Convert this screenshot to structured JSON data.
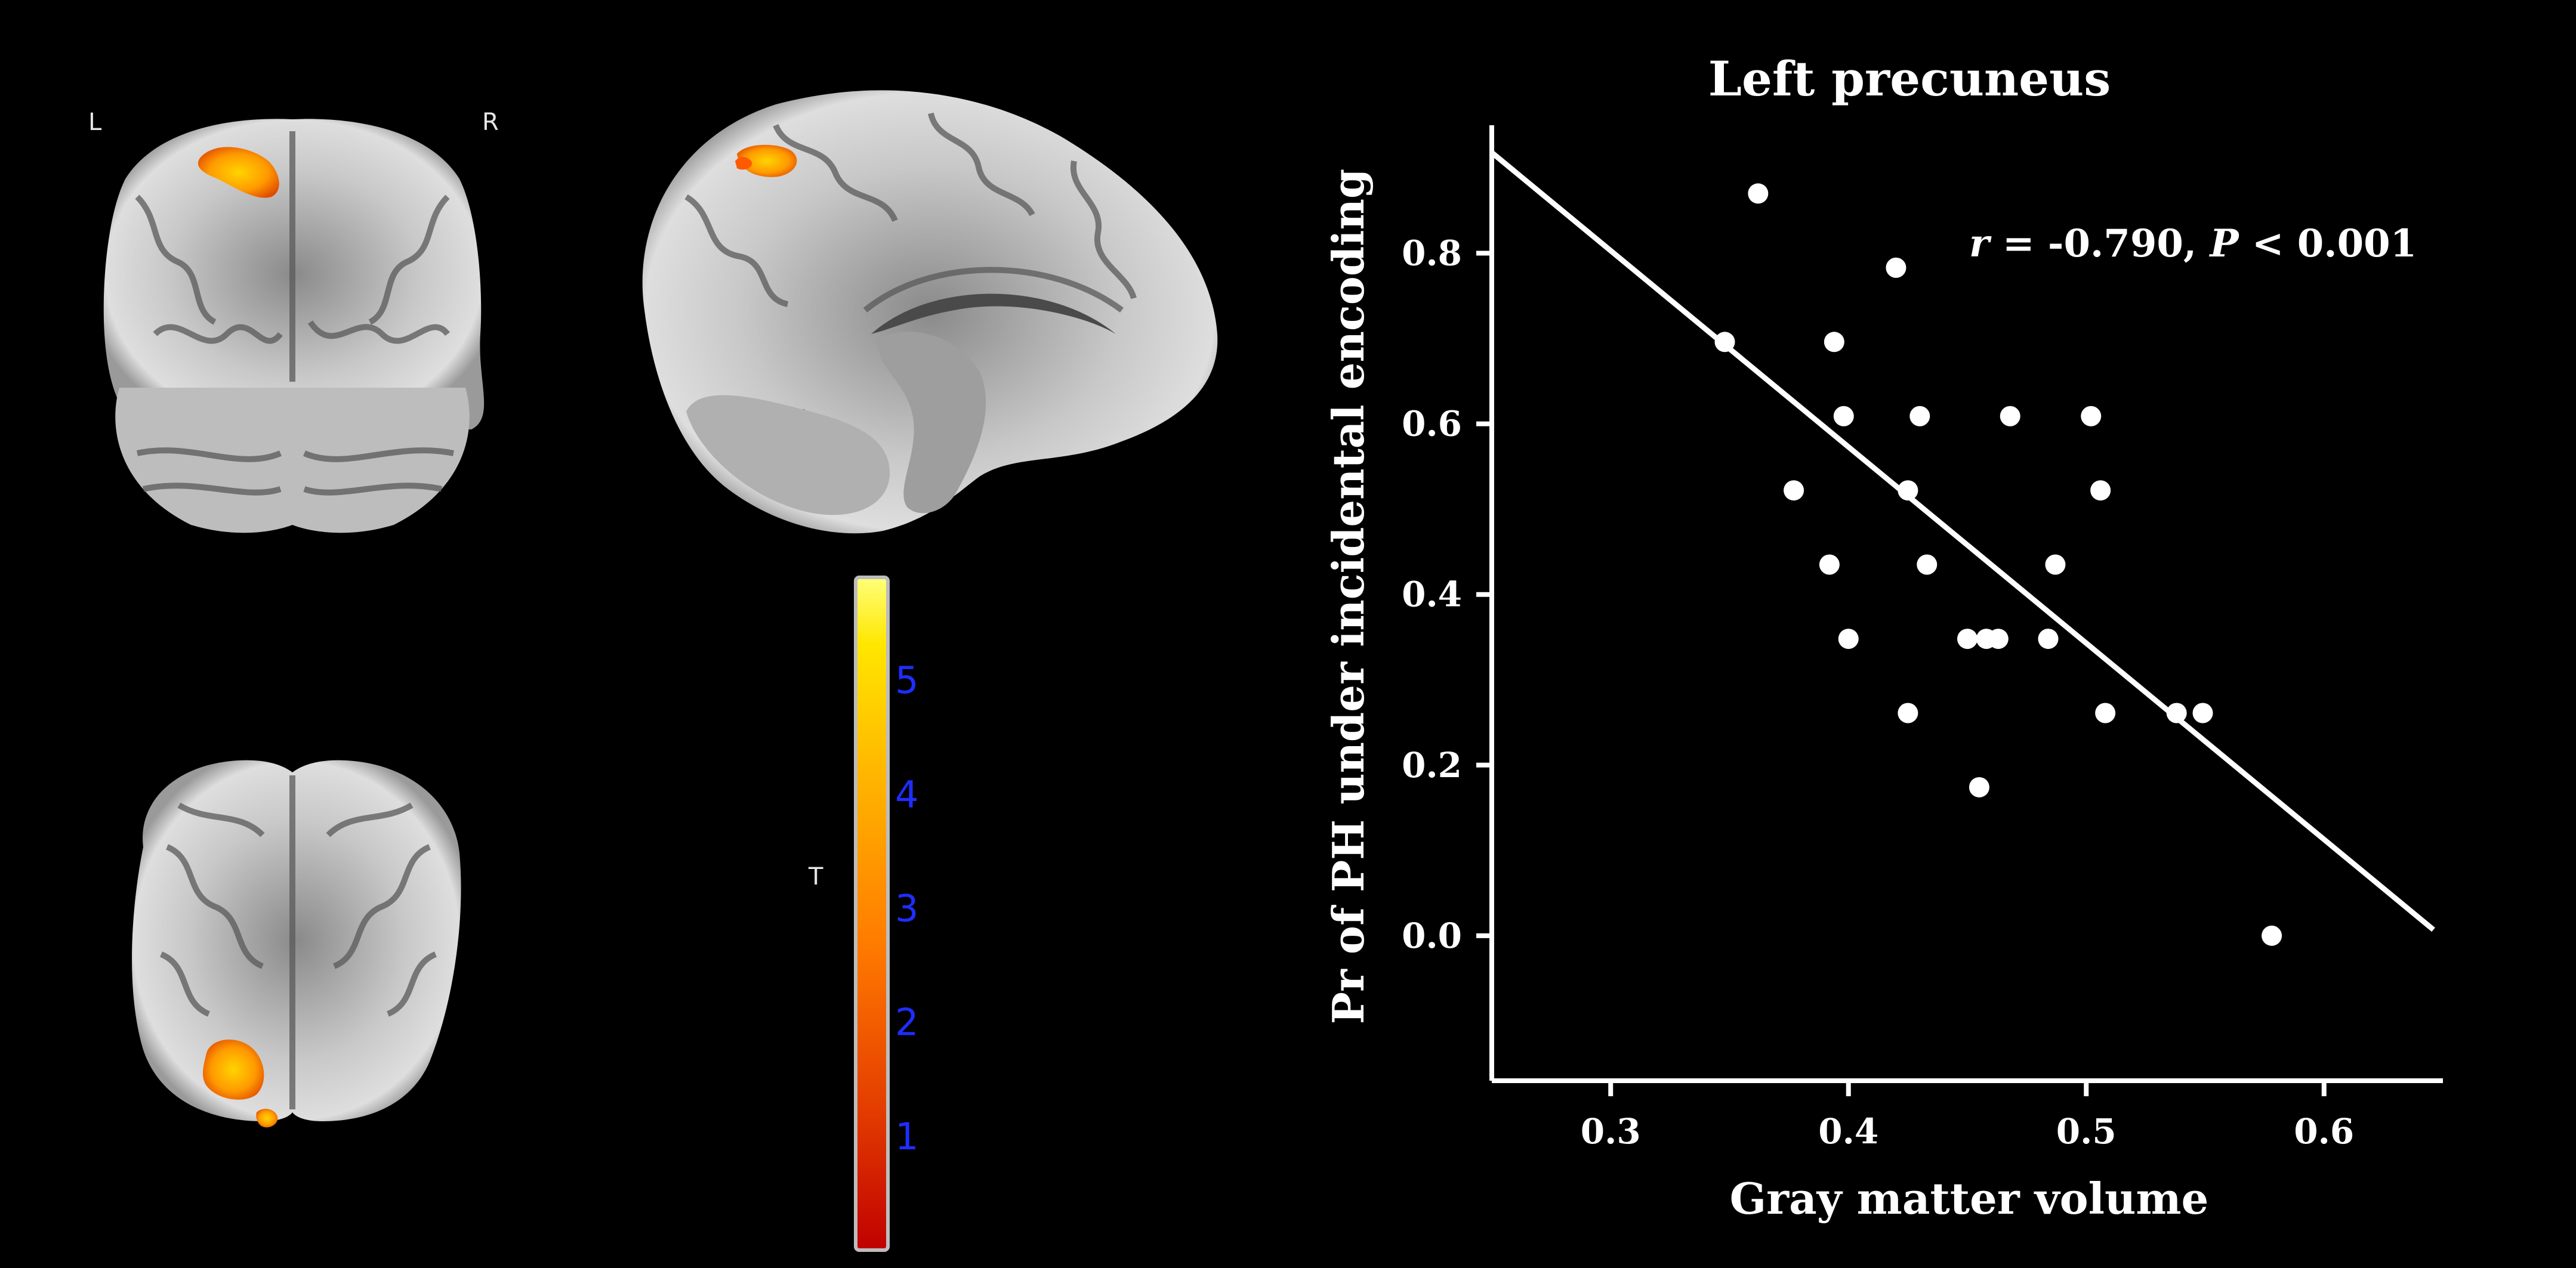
{
  "brain_panel": {
    "coronal_left_label": "L",
    "coronal_right_label": "R",
    "colorbar_label": "T",
    "colorbar_ticks": [
      "1",
      "2",
      "3",
      "4",
      "5"
    ],
    "colorbar_tick_values": [
      1,
      2,
      3,
      4,
      5
    ],
    "colorbar_range": [
      0,
      5.9
    ],
    "colorbar_colors": [
      "#c00000",
      "#e23a00",
      "#ff7a00",
      "#ffb400",
      "#ffe600",
      "#ffff7a"
    ]
  },
  "chart_data": {
    "type": "scatter",
    "title": "Left precuneus",
    "xlabel": "Gray matter volume",
    "ylabel": "Pr of PH under incidental encoding",
    "annotation": "r = -0.790, P < 0.001",
    "annotation_r": "r",
    "annotation_r_value": " = -0.790, ",
    "annotation_p": "P",
    "annotation_p_value": " < 0.001",
    "xlim": [
      0.25,
      0.65
    ],
    "ylim": [
      -0.17,
      0.95
    ],
    "xticks": [
      0.3,
      0.4,
      0.5,
      0.6
    ],
    "xtick_labels": [
      "0.3",
      "0.4",
      "0.5",
      "0.6"
    ],
    "yticks": [
      0.0,
      0.2,
      0.4,
      0.6,
      0.8
    ],
    "ytick_labels": [
      "0.0",
      "0.2",
      "0.4",
      "0.6",
      "0.8"
    ],
    "grid": false,
    "points": [
      {
        "x": 0.362,
        "y": 0.87
      },
      {
        "x": 0.42,
        "y": 0.783
      },
      {
        "x": 0.348,
        "y": 0.696
      },
      {
        "x": 0.394,
        "y": 0.696
      },
      {
        "x": 0.398,
        "y": 0.609
      },
      {
        "x": 0.43,
        "y": 0.609
      },
      {
        "x": 0.468,
        "y": 0.609
      },
      {
        "x": 0.502,
        "y": 0.609
      },
      {
        "x": 0.377,
        "y": 0.522
      },
      {
        "x": 0.425,
        "y": 0.522
      },
      {
        "x": 0.506,
        "y": 0.522
      },
      {
        "x": 0.392,
        "y": 0.435
      },
      {
        "x": 0.433,
        "y": 0.435
      },
      {
        "x": 0.487,
        "y": 0.435
      },
      {
        "x": 0.4,
        "y": 0.348
      },
      {
        "x": 0.45,
        "y": 0.348
      },
      {
        "x": 0.458,
        "y": 0.348
      },
      {
        "x": 0.463,
        "y": 0.348
      },
      {
        "x": 0.484,
        "y": 0.348
      },
      {
        "x": 0.425,
        "y": 0.261
      },
      {
        "x": 0.508,
        "y": 0.261
      },
      {
        "x": 0.538,
        "y": 0.261
      },
      {
        "x": 0.549,
        "y": 0.261
      },
      {
        "x": 0.455,
        "y": 0.174
      },
      {
        "x": 0.578,
        "y": 0.0
      }
    ],
    "fit_line": {
      "x": [
        0.25,
        0.646
      ],
      "y": [
        0.918,
        0.007
      ]
    }
  }
}
